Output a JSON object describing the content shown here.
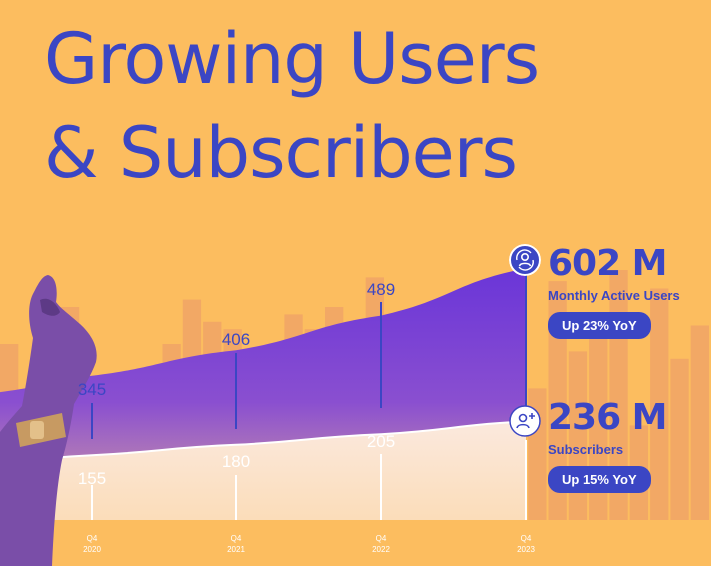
{
  "title": {
    "line1": "Growing Users",
    "line2": "& Subscribers"
  },
  "colors": {
    "background": "#fcbd5f",
    "text": "#3b46c4",
    "mau_area": "#6a35d8",
    "subscribers_area": "#ffffff",
    "badge_bg": "#3b46c4"
  },
  "metrics": {
    "mau": {
      "value": "602 M",
      "label": "Monthly Active Users",
      "badge": "Up 23% YoY",
      "icon": "users-refresh-icon"
    },
    "subscribers": {
      "value": "236 M",
      "label": "Subscribers",
      "badge": "Up 15% YoY",
      "icon": "add-user-icon"
    }
  },
  "chart_data": {
    "type": "area",
    "x": [
      "Q4 2020",
      "Q4 2021",
      "Q4 2022",
      "Q4 2023"
    ],
    "series": [
      {
        "name": "Monthly Active Users",
        "values": [
          345,
          406,
          489,
          602
        ]
      },
      {
        "name": "Subscribers",
        "values": [
          155,
          180,
          205,
          236
        ]
      }
    ],
    "data_labels": [
      {
        "series": "Monthly Active Users",
        "labels": [
          "345",
          "406",
          "489",
          "602 M"
        ]
      },
      {
        "series": "Subscribers",
        "labels": [
          "155",
          "180",
          "205",
          "236 M"
        ]
      }
    ],
    "tick_labels": [
      {
        "quarter": "Q4",
        "year": "2020"
      },
      {
        "quarter": "Q4",
        "year": "2021"
      },
      {
        "quarter": "Q4",
        "year": "2022"
      },
      {
        "quarter": "Q4",
        "year": "2023"
      }
    ],
    "ylim": [
      0,
      640
    ],
    "background_bars": [
      60,
      40,
      55,
      70,
      40,
      35,
      52,
      46,
      60,
      72,
      66,
      64,
      55,
      58,
      68,
      64,
      70,
      63,
      78,
      50,
      62,
      70,
      44,
      57,
      70,
      66,
      48,
      77,
      58,
      62,
      80,
      38,
      75,
      56,
      65
    ],
    "grid": false,
    "legend": "right"
  }
}
